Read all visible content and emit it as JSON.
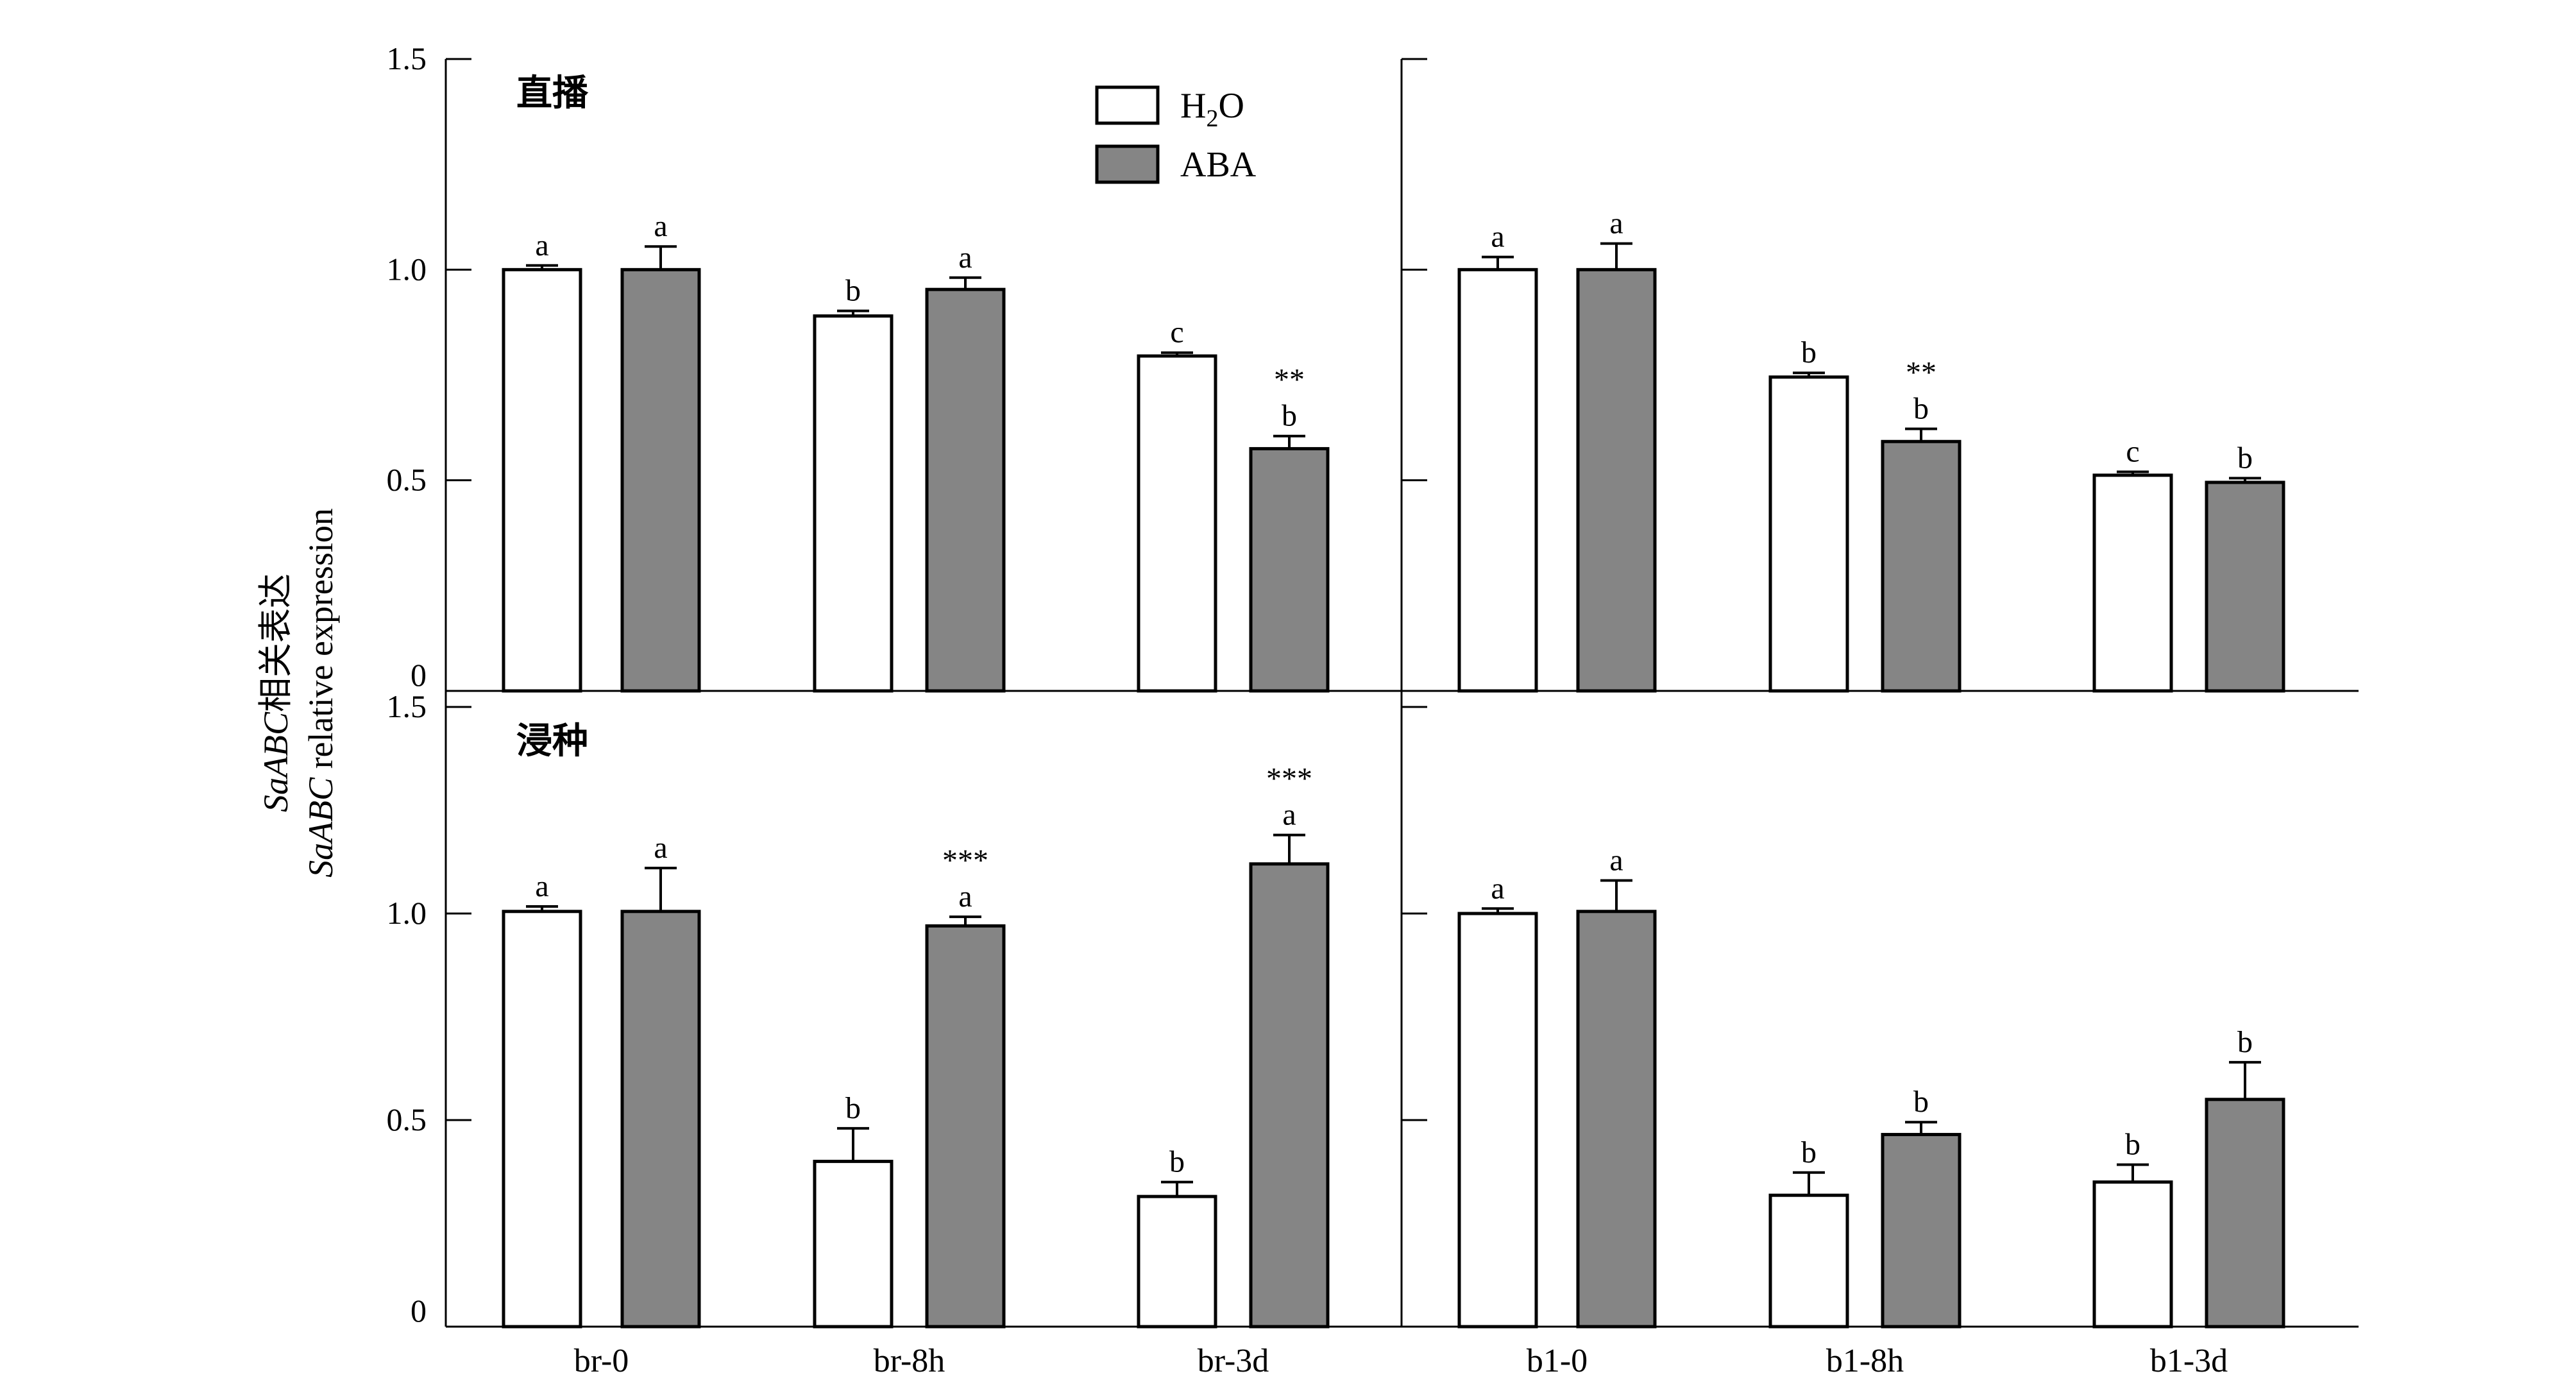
{
  "chart_data": {
    "type": "bar",
    "ylabel_lines": [
      [
        {
          "text": "SaABC",
          "italic": true
        },
        {
          "text": "相关表达",
          "italic": false
        }
      ],
      [
        {
          "text": "SaABC",
          "italic": true
        },
        {
          "text": " relative expression",
          "italic": false
        }
      ]
    ],
    "legend": {
      "placement": "top",
      "entries": [
        {
          "label": "H",
          "sub": "2",
          "suffix": "O",
          "color": "#ffffff"
        },
        {
          "label": "ABA",
          "sub": "",
          "suffix": "",
          "color": "#858585"
        }
      ]
    },
    "y_ticks": [
      "0",
      "0.5",
      "1.0",
      "1.5"
    ],
    "ylim": [
      0,
      1.5
    ],
    "rows": [
      {
        "title": "直播",
        "panels": [
          {
            "categories": [
              "br-0",
              "br-8h",
              "br-3d"
            ],
            "series": [
              {
                "values": [
                  1.0,
                  0.89,
                  0.795
                ],
                "errors": [
                  0.01,
                  0.012,
                  0.008
                ],
                "labels": [
                  "a",
                  "b",
                  "c"
                ],
                "marks": [
                  "",
                  "",
                  ""
                ]
              },
              {
                "values": [
                  1.0,
                  0.953,
                  0.575
                ],
                "errors": [
                  0.055,
                  0.028,
                  0.03
                ],
                "labels": [
                  "a",
                  "a",
                  "b"
                ],
                "marks": [
                  "",
                  "",
                  "**"
                ]
              }
            ]
          },
          {
            "categories": [
              "b1-0",
              "b1-8h",
              "b1-3d"
            ],
            "series": [
              {
                "values": [
                  1.0,
                  0.745,
                  0.512
                ],
                "errors": [
                  0.03,
                  0.01,
                  0.008
                ],
                "labels": [
                  "a",
                  "b",
                  "c"
                ],
                "marks": [
                  "",
                  "",
                  ""
                ]
              },
              {
                "values": [
                  1.0,
                  0.592,
                  0.495
                ],
                "errors": [
                  0.062,
                  0.03,
                  0.01
                ],
                "labels": [
                  "a",
                  "b",
                  "b"
                ],
                "marks": [
                  "",
                  "**",
                  ""
                ]
              }
            ]
          }
        ]
      },
      {
        "title": "浸种",
        "panels": [
          {
            "categories": [
              "br-0",
              "br-8h",
              "br-3d"
            ],
            "series": [
              {
                "values": [
                  1.005,
                  0.4,
                  0.315
                ],
                "errors": [
                  0.012,
                  0.08,
                  0.035
                ],
                "labels": [
                  "a",
                  "b",
                  "b"
                ],
                "marks": [
                  "",
                  "",
                  ""
                ]
              },
              {
                "values": [
                  1.005,
                  0.97,
                  1.12
                ],
                "errors": [
                  0.105,
                  0.022,
                  0.07
                ],
                "labels": [
                  "a",
                  "a",
                  "a"
                ],
                "marks": [
                  "",
                  "***",
                  "***"
                ]
              }
            ]
          },
          {
            "categories": [
              "b1-0",
              "b1-8h",
              "b1-3d"
            ],
            "series": [
              {
                "values": [
                  1.0,
                  0.318,
                  0.35
                ],
                "errors": [
                  0.012,
                  0.055,
                  0.042
                ],
                "labels": [
                  "a",
                  "b",
                  "b"
                ],
                "marks": [
                  "",
                  "",
                  ""
                ]
              },
              {
                "values": [
                  1.005,
                  0.465,
                  0.55
                ],
                "errors": [
                  0.075,
                  0.03,
                  0.09
                ],
                "labels": [
                  "a",
                  "b",
                  "b"
                ],
                "marks": [
                  "",
                  "",
                  ""
                ]
              }
            ]
          }
        ]
      }
    ]
  }
}
